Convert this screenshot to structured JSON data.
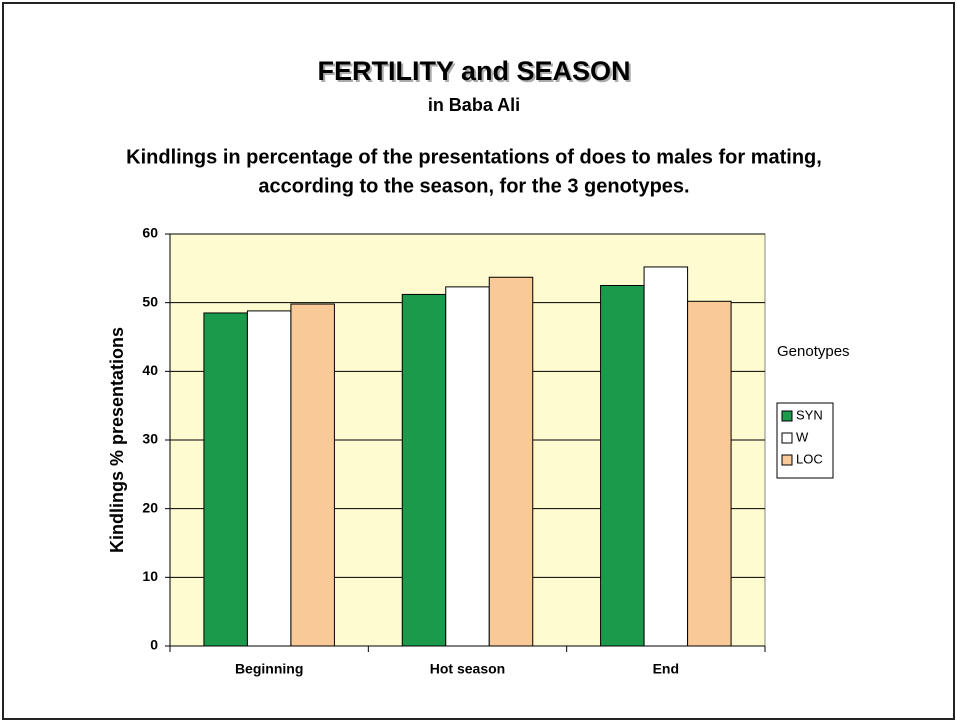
{
  "chart_data": {
    "type": "bar",
    "title": "FERTILITY and SEASON",
    "subtitle": "in Baba Ali",
    "description": [
      "Kindlings in percentage of the presentations of does to males for mating,",
      "according to the season, for the 3 genotypes."
    ],
    "y_label": "Kindlings % presentations",
    "legend_title": "Genotypes",
    "categories": [
      "Beginning",
      "Hot season",
      "End"
    ],
    "series": [
      {
        "name": "SYN",
        "color": "#1a9a4a",
        "values": [
          48.5,
          51.2,
          52.5
        ]
      },
      {
        "name": "W",
        "color": "#ffffff",
        "values": [
          48.8,
          52.3,
          55.2
        ]
      },
      {
        "name": "LOC",
        "color": "#f9c997",
        "values": [
          49.8,
          53.7,
          50.2
        ]
      }
    ],
    "ylim": [
      0,
      60
    ],
    "yticks": [
      0,
      10,
      20,
      30,
      40,
      50,
      60
    ],
    "grid": true
  }
}
